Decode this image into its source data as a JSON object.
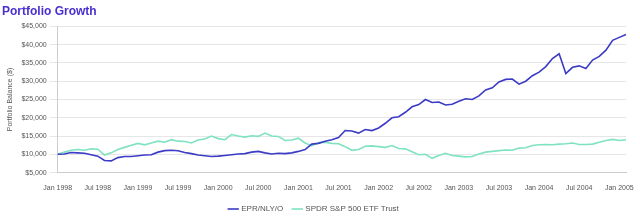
{
  "chart_data": {
    "type": "line",
    "title": "Portfolio Growth",
    "y_label": "Portfolio Balance ($)",
    "categories": [
      "Jan 1998",
      null,
      null,
      null,
      null,
      null,
      "Jul 1998",
      null,
      null,
      null,
      null,
      null,
      "Jan 1999",
      null,
      null,
      null,
      null,
      null,
      "Jul 1999",
      null,
      null,
      null,
      null,
      null,
      "Jan 2000",
      null,
      null,
      null,
      null,
      null,
      "Jul 2000",
      null,
      null,
      null,
      null,
      null,
      "Jan 2001",
      null,
      null,
      null,
      null,
      null,
      "Jul 2001",
      null,
      null,
      null,
      null,
      null,
      "Jan 2002",
      null,
      null,
      null,
      null,
      null,
      "Jul 2002",
      null,
      null,
      null,
      null,
      null,
      "Jan 2003",
      null,
      null,
      null,
      null,
      null,
      "Jul 2003",
      null,
      null,
      null,
      null,
      null,
      "Jan 2004",
      null,
      null,
      null,
      null,
      null,
      "Jul 2004",
      null,
      null,
      null,
      null,
      null,
      "Jan 2005",
      null
    ],
    "series": [
      {
        "name": "EPR/NLY/O",
        "color": "#3b3bc6",
        "values": [
          10000,
          10100,
          10500,
          10400,
          10300,
          9900,
          9500,
          8300,
          8200,
          9100,
          9400,
          9400,
          9600,
          9800,
          9900,
          10600,
          11000,
          11100,
          11000,
          10500,
          10200,
          9800,
          9600,
          9400,
          9500,
          9700,
          9900,
          10100,
          10200,
          10600,
          10800,
          10400,
          10100,
          10300,
          10200,
          10400,
          10800,
          11300,
          12800,
          13000,
          13600,
          14000,
          14600,
          16500,
          16400,
          15800,
          16800,
          16500,
          17200,
          18500,
          20000,
          20300,
          21500,
          23000,
          23600,
          25000,
          24200,
          24300,
          23500,
          23700,
          24500,
          25200,
          25000,
          26000,
          27600,
          28200,
          29800,
          30500,
          30600,
          29200,
          30000,
          31500,
          32500,
          34000,
          36200,
          37500,
          32100,
          33800,
          34200,
          33500,
          35800,
          36800,
          38500,
          41200,
          42000,
          42800
        ]
      },
      {
        "name": "SPDR S&P 500 ETF Trust",
        "color": "#7fe3bf",
        "values": [
          10000,
          10600,
          11100,
          11300,
          11100,
          11500,
          11400,
          9800,
          10400,
          11300,
          11900,
          12500,
          13000,
          12600,
          13100,
          13600,
          13300,
          14000,
          13600,
          13500,
          13100,
          13900,
          14200,
          15000,
          14300,
          14000,
          15400,
          15000,
          14700,
          15100,
          14900,
          15800,
          15000,
          14900,
          13800,
          13900,
          14400,
          13100,
          12300,
          13200,
          13300,
          13000,
          12900,
          12100,
          11100,
          11300,
          12200,
          12300,
          12100,
          11900,
          12400,
          11600,
          11500,
          10700,
          9900,
          10000,
          8900,
          9700,
          10300,
          9700,
          9500,
          9300,
          9400,
          10100,
          10600,
          10800,
          11000,
          11200,
          11100,
          11700,
          11800,
          12400,
          12600,
          12700,
          12600,
          12800,
          12900,
          13100,
          12700,
          12700,
          12800,
          13300,
          13800,
          14100,
          13800,
          14000
        ]
      }
    ],
    "ylim": [
      5000,
      45000
    ],
    "yticks": [
      {
        "value": 5000,
        "label": "$5,000"
      },
      {
        "value": 10000,
        "label": "$10,000"
      },
      {
        "value": 15000,
        "label": "$15,000"
      },
      {
        "value": 20000,
        "label": "$20,000"
      },
      {
        "value": 25000,
        "label": "$25,000"
      },
      {
        "value": 30000,
        "label": "$30,000"
      },
      {
        "value": 35000,
        "label": "$35,000"
      },
      {
        "value": 40000,
        "label": "$40,000"
      },
      {
        "value": 45000,
        "label": "$45,000"
      }
    ],
    "grid": true,
    "legend": "bottom"
  }
}
